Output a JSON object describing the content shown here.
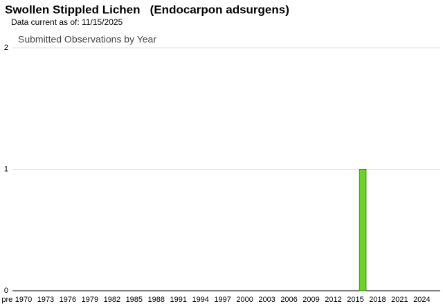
{
  "header": {
    "title": "Swollen Stippled Lichen   (Endocarpon adsurgens)",
    "subtitle": "Data current as of: 11/15/2025"
  },
  "chart_data": {
    "type": "bar",
    "title": "Submitted Observations by Year",
    "categories": [
      "pre",
      "1970",
      null,
      null,
      "1973",
      null,
      null,
      "1976",
      null,
      null,
      "1979",
      null,
      null,
      "1982",
      null,
      null,
      "1985",
      null,
      null,
      "1988",
      null,
      null,
      "1991",
      null,
      null,
      "1994",
      null,
      null,
      "1997",
      null,
      null,
      "2000",
      null,
      null,
      "2003",
      null,
      null,
      "2006",
      null,
      null,
      "2009",
      null,
      null,
      "2012",
      null,
      null,
      "2015",
      null,
      null,
      "2018",
      null,
      null,
      "2021",
      null,
      null,
      "2024",
      null,
      null
    ],
    "values": [
      0,
      0,
      0,
      0,
      0,
      0,
      0,
      0,
      0,
      0,
      0,
      0,
      0,
      0,
      0,
      0,
      0,
      0,
      0,
      0,
      0,
      0,
      0,
      0,
      0,
      0,
      0,
      0,
      0,
      0,
      0,
      0,
      0,
      0,
      0,
      0,
      0,
      0,
      0,
      0,
      0,
      0,
      0,
      0,
      0,
      0,
      0,
      1,
      0,
      0,
      0,
      0,
      0,
      0,
      0,
      0,
      0,
      0
    ],
    "color": "#6fd12a",
    "ylim": [
      0,
      2
    ],
    "yticks": [
      0,
      1,
      2
    ],
    "grid": true
  }
}
